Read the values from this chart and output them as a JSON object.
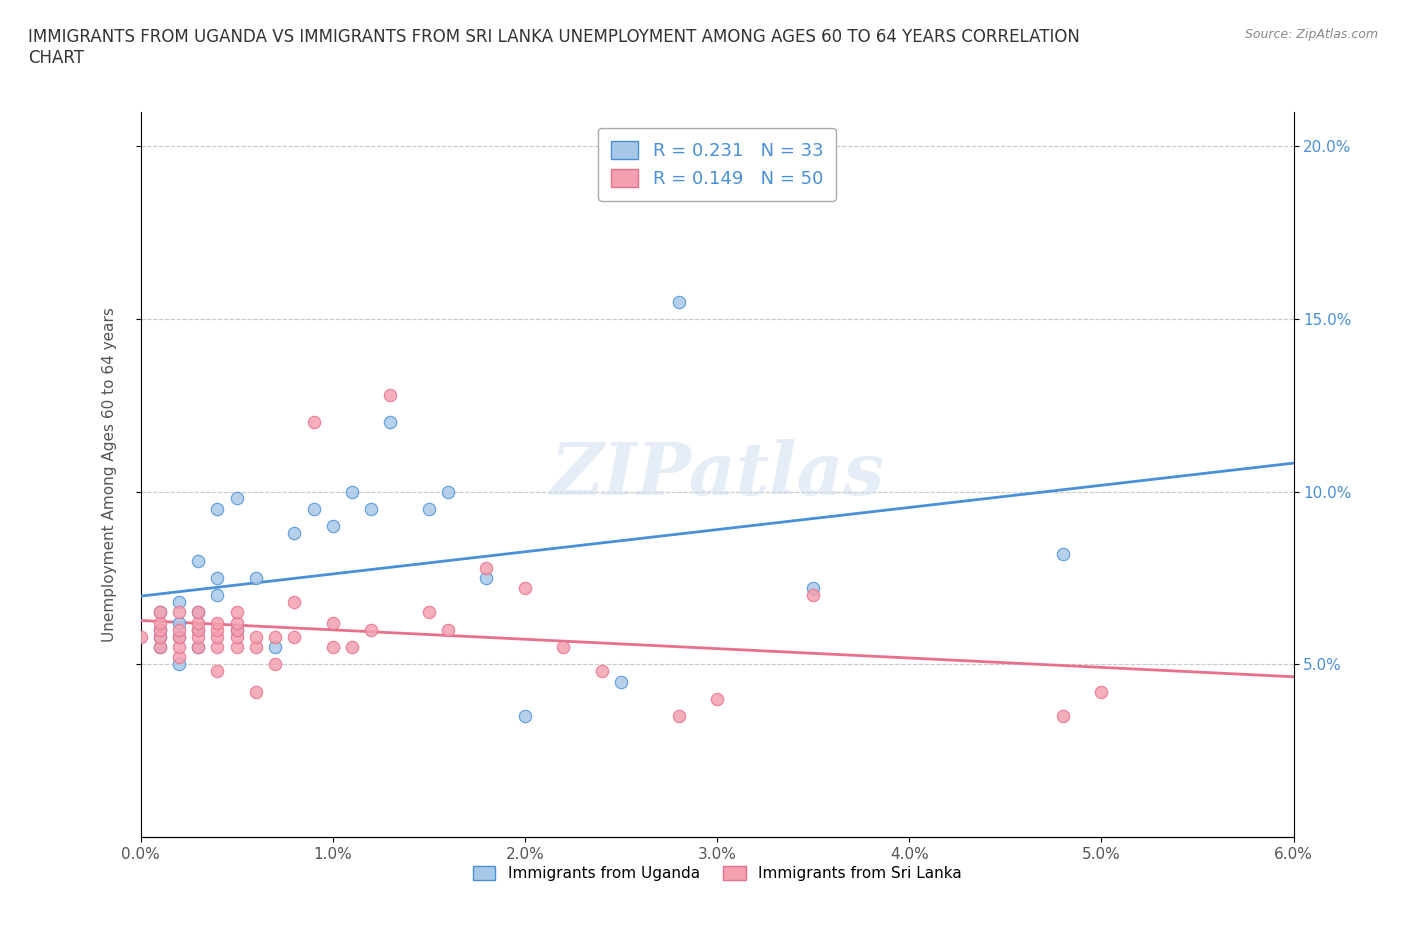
{
  "title": "IMMIGRANTS FROM UGANDA VS IMMIGRANTS FROM SRI LANKA UNEMPLOYMENT AMONG AGES 60 TO 64 YEARS CORRELATION\nCHART",
  "source": "Source: ZipAtlas.com",
  "xlabel": "",
  "ylabel": "Unemployment Among Ages 60 to 64 years",
  "xlim": [
    0.0,
    0.06
  ],
  "ylim": [
    0.0,
    0.21
  ],
  "xtick_labels": [
    "0.0%",
    "1.0%",
    "2.0%",
    "3.0%",
    "4.0%",
    "5.0%",
    "6.0%"
  ],
  "xtick_vals": [
    0.0,
    0.01,
    0.02,
    0.03,
    0.04,
    0.05,
    0.06
  ],
  "ytick_labels": [
    "5.0%",
    "10.0%",
    "15.0%",
    "20.0%"
  ],
  "ytick_vals": [
    0.05,
    0.1,
    0.15,
    0.2
  ],
  "watermark": "ZIPatlas",
  "uganda_color": "#a8c8e8",
  "srilanka_color": "#f4a0b0",
  "uganda_line_color": "#4a90d9",
  "srilanka_line_color": "#e8708a",
  "legend_R_uganda": "R = 0.231",
  "legend_N_uganda": "N = 33",
  "legend_R_srilanka": "R = 0.149",
  "legend_N_srilanka": "N = 50",
  "uganda_x": [
    0.001,
    0.001,
    0.001,
    0.001,
    0.002,
    0.002,
    0.002,
    0.002,
    0.003,
    0.003,
    0.003,
    0.003,
    0.004,
    0.004,
    0.004,
    0.005,
    0.005,
    0.006,
    0.007,
    0.008,
    0.009,
    0.01,
    0.011,
    0.012,
    0.013,
    0.015,
    0.016,
    0.018,
    0.02,
    0.025,
    0.028,
    0.035,
    0.048
  ],
  "uganda_y": [
    0.055,
    0.058,
    0.06,
    0.065,
    0.05,
    0.058,
    0.062,
    0.068,
    0.055,
    0.06,
    0.065,
    0.08,
    0.07,
    0.075,
    0.095,
    0.06,
    0.098,
    0.075,
    0.055,
    0.088,
    0.095,
    0.09,
    0.1,
    0.095,
    0.12,
    0.095,
    0.1,
    0.075,
    0.035,
    0.045,
    0.155,
    0.072,
    0.082
  ],
  "srilanka_x": [
    0.0,
    0.001,
    0.001,
    0.001,
    0.001,
    0.001,
    0.002,
    0.002,
    0.002,
    0.002,
    0.002,
    0.003,
    0.003,
    0.003,
    0.003,
    0.003,
    0.004,
    0.004,
    0.004,
    0.004,
    0.004,
    0.005,
    0.005,
    0.005,
    0.005,
    0.005,
    0.006,
    0.006,
    0.006,
    0.007,
    0.007,
    0.008,
    0.008,
    0.009,
    0.01,
    0.01,
    0.011,
    0.012,
    0.013,
    0.015,
    0.016,
    0.018,
    0.02,
    0.022,
    0.024,
    0.028,
    0.03,
    0.035,
    0.048,
    0.05
  ],
  "srilanka_y": [
    0.058,
    0.055,
    0.058,
    0.06,
    0.062,
    0.065,
    0.052,
    0.055,
    0.058,
    0.06,
    0.065,
    0.055,
    0.058,
    0.06,
    0.062,
    0.065,
    0.048,
    0.055,
    0.058,
    0.06,
    0.062,
    0.055,
    0.058,
    0.06,
    0.062,
    0.065,
    0.042,
    0.055,
    0.058,
    0.05,
    0.058,
    0.058,
    0.068,
    0.12,
    0.055,
    0.062,
    0.055,
    0.06,
    0.128,
    0.065,
    0.06,
    0.078,
    0.072,
    0.055,
    0.048,
    0.035,
    0.04,
    0.07,
    0.035,
    0.042
  ]
}
